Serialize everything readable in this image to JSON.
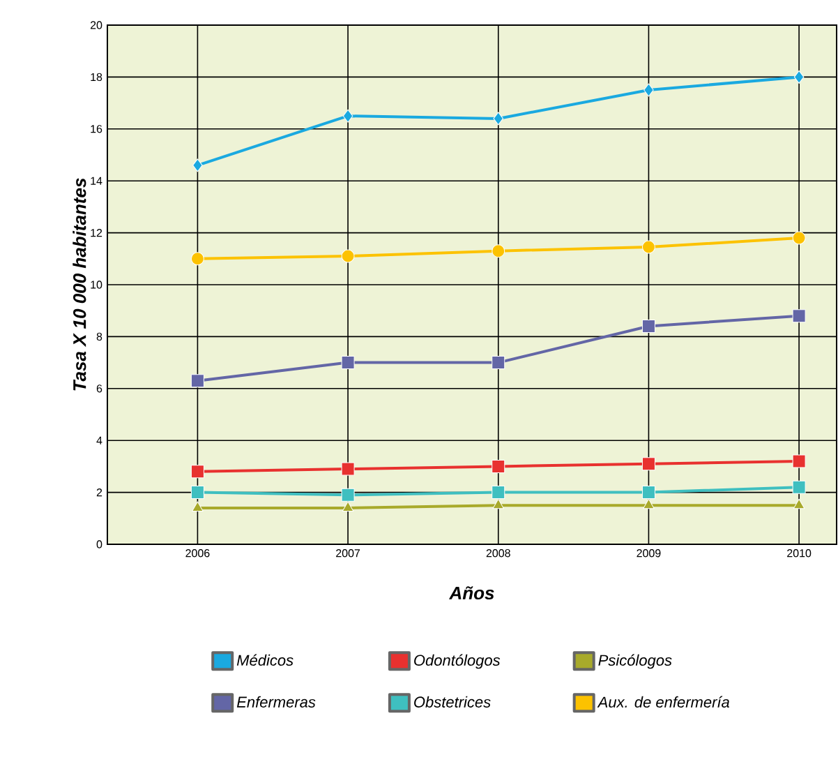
{
  "chart_data": {
    "type": "line",
    "xlabel": "Años",
    "ylabel": "Tasa X 10 000 habitantes",
    "categories": [
      "2006",
      "2007",
      "2008",
      "2009",
      "2010"
    ],
    "series": [
      {
        "name": "Médicos",
        "color": "#1aa9e0",
        "marker": "diamond",
        "values": [
          14.6,
          16.5,
          16.4,
          17.5,
          18.0
        ]
      },
      {
        "name": "Odontólogos",
        "color": "#e8312f",
        "marker": "square",
        "values": [
          2.8,
          2.9,
          3.0,
          3.1,
          3.2
        ]
      },
      {
        "name": "Psicólogos",
        "color": "#a8aa2b",
        "marker": "triangle",
        "values": [
          1.4,
          1.4,
          1.5,
          1.5,
          1.5
        ]
      },
      {
        "name": "Enfermeras",
        "color": "#6366a6",
        "marker": "square",
        "values": [
          6.3,
          7.0,
          7.0,
          8.4,
          8.8
        ]
      },
      {
        "name": "Obstetrices",
        "color": "#3fbfc0",
        "marker": "square",
        "values": [
          2.0,
          1.9,
          2.0,
          2.0,
          2.2
        ]
      },
      {
        "name": "Aux. de enfermería",
        "color": "#fcc200",
        "marker": "circle",
        "values": [
          11.0,
          11.1,
          11.3,
          11.45,
          11.8
        ]
      }
    ],
    "ylim": [
      0,
      20
    ],
    "yticks": [
      0,
      2,
      4,
      6,
      8,
      10,
      12,
      14,
      16,
      18,
      20
    ],
    "grid": true,
    "legend": "bottom",
    "line_style": "solid"
  }
}
